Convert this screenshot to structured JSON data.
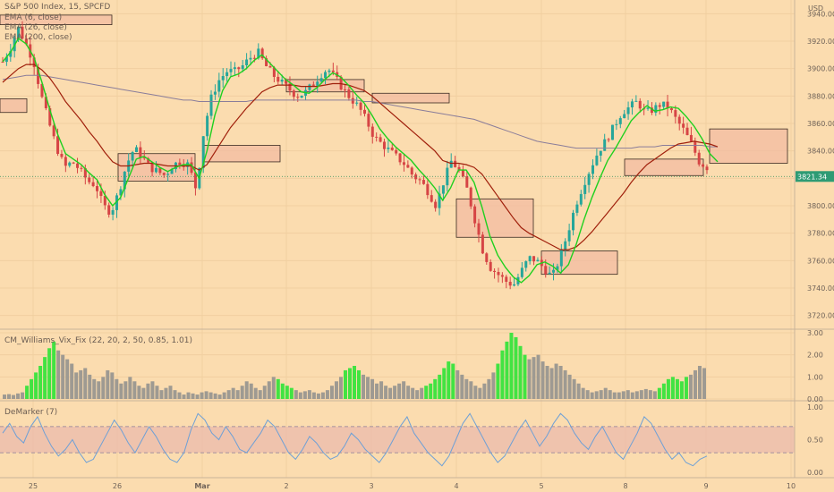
{
  "chart_data": {
    "type": "candlestick",
    "title": "S&P 500 Index, 15, SPCFD",
    "indicator_legend": [
      "EMA (6, close)",
      "EMA (26, close)",
      "EMA (200, close)"
    ],
    "y_unit": "USD",
    "ylim": [
      3710,
      3950
    ],
    "yticks": [
      3720,
      3740,
      3760,
      3780,
      3800,
      3820,
      3840,
      3860,
      3880,
      3900,
      3920,
      3940
    ],
    "last_price": "3821.34",
    "x_tick_labels": [
      "25",
      "26",
      "Mar",
      "2",
      "3",
      "4",
      "5",
      "8",
      "9",
      "10"
    ],
    "price_path": [
      3905,
      3915,
      3930,
      3918,
      3905,
      3880,
      3860,
      3842,
      3828,
      3832,
      3826,
      3818,
      3815,
      3800,
      3795,
      3810,
      3830,
      3842,
      3836,
      3828,
      3825,
      3822,
      3830,
      3832,
      3830,
      3812,
      3855,
      3880,
      3892,
      3898,
      3898,
      3902,
      3908,
      3912,
      3902,
      3895,
      3890,
      3885,
      3880,
      3882,
      3888,
      3895,
      3900,
      3893,
      3885,
      3878,
      3872,
      3862,
      3850,
      3845,
      3840,
      3835,
      3830,
      3822,
      3818,
      3810,
      3800,
      3818,
      3833,
      3825,
      3812,
      3790,
      3768,
      3755,
      3750,
      3745,
      3742,
      3752,
      3762,
      3760,
      3754,
      3748,
      3762,
      3780,
      3800,
      3815,
      3828,
      3840,
      3848,
      3858,
      3868,
      3872,
      3876,
      3868,
      3870,
      3874,
      3872,
      3863,
      3855,
      3845,
      3832,
      3828
    ],
    "ema_6": [
      3905,
      3912,
      3922,
      3918,
      3908,
      3890,
      3870,
      3852,
      3838,
      3834,
      3830,
      3824,
      3819,
      3808,
      3800,
      3806,
      3820,
      3834,
      3836,
      3832,
      3828,
      3825,
      3828,
      3830,
      3830,
      3820,
      3840,
      3866,
      3884,
      3894,
      3896,
      3900,
      3906,
      3910,
      3904,
      3898,
      3892,
      3888,
      3883,
      3882,
      3886,
      3892,
      3897,
      3894,
      3888,
      3881,
      3875,
      3866,
      3856,
      3849,
      3843,
      3838,
      3833,
      3826,
      3820,
      3813,
      3804,
      3813,
      3826,
      3826,
      3817,
      3799,
      3778,
      3764,
      3755,
      3748,
      3744,
      3749,
      3757,
      3759,
      3756,
      3751,
      3757,
      3772,
      3790,
      3806,
      3820,
      3833,
      3842,
      3852,
      3862,
      3868,
      3873,
      3869,
      3870,
      3872,
      3871,
      3865,
      3858,
      3849,
      3838,
      3832
    ],
    "ema_26": [
      3890,
      3895,
      3900,
      3903,
      3903,
      3899,
      3893,
      3885,
      3876,
      3869,
      3862,
      3854,
      3847,
      3839,
      3832,
      3829,
      3829,
      3830,
      3831,
      3831,
      3830,
      3829,
      3829,
      3829,
      3829,
      3826,
      3830,
      3839,
      3848,
      3857,
      3864,
      3871,
      3877,
      3883,
      3886,
      3888,
      3888,
      3888,
      3887,
      3887,
      3887,
      3888,
      3889,
      3889,
      3888,
      3886,
      3884,
      3880,
      3875,
      3870,
      3865,
      3860,
      3855,
      3850,
      3845,
      3840,
      3833,
      3831,
      3831,
      3830,
      3828,
      3823,
      3815,
      3807,
      3799,
      3791,
      3784,
      3780,
      3777,
      3774,
      3771,
      3768,
      3768,
      3770,
      3775,
      3781,
      3788,
      3795,
      3802,
      3809,
      3817,
      3824,
      3830,
      3834,
      3838,
      3842,
      3845,
      3846,
      3847,
      3846,
      3845,
      3843
    ],
    "ema_200": [
      3892,
      3893,
      3894,
      3895,
      3895,
      3895,
      3894,
      3893,
      3892,
      3891,
      3890,
      3889,
      3888,
      3887,
      3886,
      3885,
      3884,
      3883,
      3882,
      3881,
      3880,
      3879,
      3878,
      3877,
      3877,
      3876,
      3876,
      3876,
      3876,
      3876,
      3876,
      3876,
      3877,
      3877,
      3877,
      3877,
      3877,
      3877,
      3877,
      3877,
      3877,
      3877,
      3877,
      3877,
      3877,
      3877,
      3876,
      3876,
      3875,
      3874,
      3873,
      3872,
      3871,
      3870,
      3869,
      3868,
      3867,
      3866,
      3865,
      3864,
      3863,
      3861,
      3859,
      3857,
      3855,
      3853,
      3851,
      3849,
      3847,
      3846,
      3845,
      3844,
      3843,
      3842,
      3842,
      3842,
      3842,
      3842,
      3842,
      3842,
      3842,
      3843,
      3843,
      3843,
      3844,
      3844,
      3844,
      3844,
      3844,
      3844,
      3843,
      3843
    ],
    "zones": [
      {
        "from": 3878,
        "to": 3868
      },
      {
        "from": 3838,
        "to": 3818
      },
      {
        "from": 3844,
        "to": 3832
      },
      {
        "from": 3892,
        "to": 3883
      },
      {
        "from": 3882,
        "to": 3875
      },
      {
        "from": 3805,
        "to": 3777
      },
      {
        "from": 3767,
        "to": 3750
      },
      {
        "from": 3834,
        "to": 3822
      },
      {
        "from": 3856,
        "to": 3831
      },
      {
        "from": 3939,
        "to": 3932
      }
    ],
    "subcharts": [
      {
        "name": "CM_Williams_Vix_Fix (22, 20, 2, 50, 0.85, 1.01)",
        "ylim": [
          0,
          3
        ],
        "yticks": [
          "3.00",
          "2.00",
          "1.00",
          "0.00"
        ],
        "values": [
          0.2,
          0.22,
          0.18,
          0.25,
          0.3,
          0.6,
          0.9,
          1.2,
          1.5,
          1.9,
          2.3,
          2.6,
          2.2,
          2.0,
          1.8,
          1.6,
          1.2,
          1.3,
          1.4,
          1.1,
          0.9,
          0.8,
          1.0,
          1.3,
          1.2,
          0.9,
          0.7,
          0.8,
          1.0,
          0.8,
          0.6,
          0.5,
          0.7,
          0.8,
          0.6,
          0.4,
          0.5,
          0.6,
          0.4,
          0.3,
          0.2,
          0.3,
          0.25,
          0.2,
          0.3,
          0.35,
          0.3,
          0.25,
          0.2,
          0.3,
          0.4,
          0.5,
          0.4,
          0.6,
          0.8,
          0.7,
          0.5,
          0.4,
          0.6,
          0.8,
          1.0,
          0.9,
          0.7,
          0.6,
          0.5,
          0.4,
          0.3,
          0.35,
          0.4,
          0.3,
          0.25,
          0.3,
          0.4,
          0.6,
          0.8,
          1.0,
          1.3,
          1.4,
          1.5,
          1.3,
          1.1,
          1.0,
          0.9,
          0.7,
          0.8,
          0.6,
          0.5,
          0.6,
          0.7,
          0.8,
          0.6,
          0.5,
          0.4,
          0.5,
          0.6,
          0.7,
          0.9,
          1.1,
          1.4,
          1.7,
          1.6,
          1.3,
          1.1,
          0.9,
          0.8,
          0.6,
          0.5,
          0.7,
          0.9,
          1.2,
          1.6,
          2.2,
          2.6,
          3.0,
          2.8,
          2.4,
          2.0,
          1.8,
          1.9,
          2.0,
          1.7,
          1.5,
          1.4,
          1.6,
          1.5,
          1.3,
          1.1,
          0.9,
          0.7,
          0.5,
          0.4,
          0.3,
          0.35,
          0.4,
          0.5,
          0.4,
          0.3,
          0.3,
          0.35,
          0.4,
          0.3,
          0.35,
          0.4,
          0.45,
          0.4,
          0.35,
          0.5,
          0.7,
          0.9,
          1.0,
          0.9,
          0.8,
          1.0,
          1.1,
          1.3,
          1.5,
          1.4
        ],
        "highlight_ranges": [
          [
            5,
            11
          ],
          [
            61,
            64
          ],
          [
            76,
            79
          ],
          [
            94,
            100
          ],
          [
            110,
            116
          ],
          [
            146,
            152
          ]
        ]
      },
      {
        "name": "DeMarker (7)",
        "ylim": [
          0,
          1
        ],
        "yticks": [
          "1.00",
          "0.50",
          "0.00"
        ],
        "band": [
          0.3,
          0.7
        ],
        "values": [
          0.6,
          0.75,
          0.55,
          0.45,
          0.7,
          0.85,
          0.6,
          0.4,
          0.25,
          0.35,
          0.5,
          0.3,
          0.15,
          0.2,
          0.4,
          0.6,
          0.8,
          0.65,
          0.45,
          0.3,
          0.5,
          0.7,
          0.55,
          0.35,
          0.2,
          0.15,
          0.3,
          0.65,
          0.9,
          0.8,
          0.6,
          0.5,
          0.7,
          0.55,
          0.35,
          0.3,
          0.45,
          0.6,
          0.8,
          0.7,
          0.5,
          0.3,
          0.2,
          0.35,
          0.55,
          0.45,
          0.3,
          0.2,
          0.25,
          0.4,
          0.6,
          0.5,
          0.35,
          0.25,
          0.15,
          0.3,
          0.5,
          0.7,
          0.85,
          0.6,
          0.45,
          0.3,
          0.2,
          0.1,
          0.25,
          0.5,
          0.75,
          0.9,
          0.7,
          0.5,
          0.3,
          0.15,
          0.25,
          0.45,
          0.65,
          0.8,
          0.6,
          0.4,
          0.55,
          0.75,
          0.9,
          0.8,
          0.6,
          0.45,
          0.35,
          0.55,
          0.7,
          0.5,
          0.3,
          0.2,
          0.4,
          0.6,
          0.85,
          0.75,
          0.55,
          0.35,
          0.2,
          0.3,
          0.15,
          0.1,
          0.2,
          0.25
        ]
      }
    ]
  }
}
